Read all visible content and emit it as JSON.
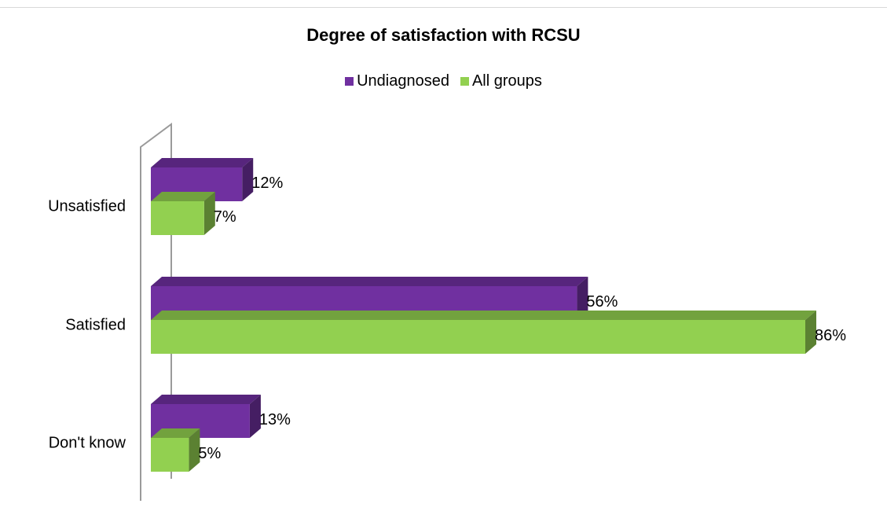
{
  "chart_data": {
    "type": "bar",
    "orientation": "horizontal",
    "title": "Degree of satisfaction with RCSU",
    "categories": [
      "Unsatisfied",
      "Satisfied",
      "Don't know"
    ],
    "series": [
      {
        "name": "Undiagnosed",
        "values": [
          12,
          56,
          13
        ],
        "labels": [
          "12%",
          "56%",
          "13%"
        ],
        "color": "#7030a0"
      },
      {
        "name": "All groups",
        "values": [
          7,
          86,
          5
        ],
        "labels": [
          "7%",
          "86%",
          "5%"
        ],
        "color": "#92d050"
      }
    ],
    "xlim": [
      0,
      86
    ],
    "value_unit": "%",
    "legend_position": "top",
    "grid": false,
    "style": "3d"
  }
}
